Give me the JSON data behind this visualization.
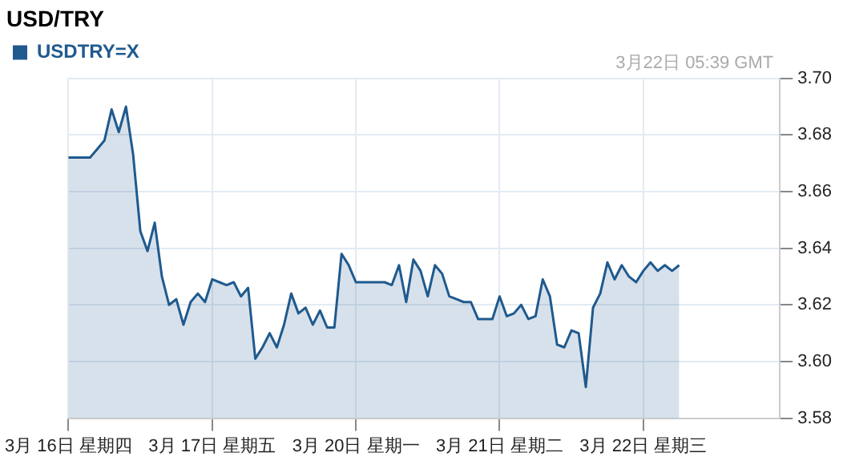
{
  "chart_data": {
    "type": "area",
    "title": "USD/TRY",
    "annotations": [
      "3月22日 05:39 GMT"
    ],
    "categories": [
      "3月 16日 星期四",
      null,
      null,
      null,
      null,
      null,
      null,
      null,
      null,
      null,
      null,
      null,
      null,
      null,
      null,
      null,
      null,
      null,
      null,
      null,
      "3月 17日 星期五",
      null,
      null,
      null,
      null,
      null,
      null,
      null,
      null,
      null,
      null,
      null,
      null,
      null,
      null,
      null,
      null,
      null,
      null,
      null,
      "3月 20日 星期一",
      null,
      null,
      null,
      null,
      null,
      null,
      null,
      null,
      null,
      null,
      null,
      null,
      null,
      null,
      null,
      null,
      null,
      null,
      null,
      "3月 21日 星期二",
      null,
      null,
      null,
      null,
      null,
      null,
      null,
      null,
      null,
      null,
      null,
      null,
      null,
      null,
      null,
      null,
      null,
      null,
      null,
      "3月 22日 星期三",
      null,
      null,
      null,
      null,
      null,
      null,
      null,
      null,
      null,
      null,
      null,
      null,
      null,
      null,
      null,
      null,
      null,
      null,
      null
    ],
    "series": [
      {
        "name": "USDTRY=X",
        "color": "#1f5a8e",
        "values": [
          3.672,
          3.672,
          3.672,
          3.672,
          3.675,
          3.678,
          3.689,
          3.681,
          3.69,
          3.673,
          3.646,
          3.639,
          3.649,
          3.63,
          3.62,
          3.622,
          3.613,
          3.621,
          3.624,
          3.621,
          3.629,
          3.628,
          3.627,
          3.628,
          3.623,
          3.626,
          3.601,
          3.605,
          3.61,
          3.605,
          3.613,
          3.624,
          3.617,
          3.619,
          3.613,
          3.618,
          3.612,
          3.612,
          3.638,
          3.634,
          3.628,
          3.628,
          3.628,
          3.628,
          3.628,
          3.627,
          3.634,
          3.621,
          3.636,
          3.632,
          3.623,
          3.634,
          3.631,
          3.623,
          3.622,
          3.621,
          3.621,
          3.615,
          3.615,
          3.615,
          3.623,
          3.616,
          3.617,
          3.62,
          3.615,
          3.616,
          3.629,
          3.623,
          3.606,
          3.605,
          3.611,
          3.61,
          3.591,
          3.619,
          3.624,
          3.635,
          3.629,
          3.634,
          3.63,
          3.628,
          3.632,
          3.635,
          3.632,
          3.634,
          3.632,
          3.634,
          null,
          null,
          null,
          null,
          null,
          null,
          null,
          null,
          null,
          null,
          null,
          null,
          null,
          null
        ]
      }
    ],
    "ylim": [
      3.58,
      3.7
    ],
    "yticks": [
      {
        "value": 3.58,
        "label": "3.58"
      },
      {
        "value": 3.6,
        "label": "3.60"
      },
      {
        "value": 3.62,
        "label": "3.62"
      },
      {
        "value": 3.64,
        "label": "3.64"
      },
      {
        "value": 3.66,
        "label": "3.66"
      },
      {
        "value": 3.68,
        "label": "3.68"
      },
      {
        "value": 3.7,
        "label": "3.70"
      }
    ],
    "grid": true,
    "legend": "top left",
    "marker": "none",
    "line_style": "solid"
  }
}
